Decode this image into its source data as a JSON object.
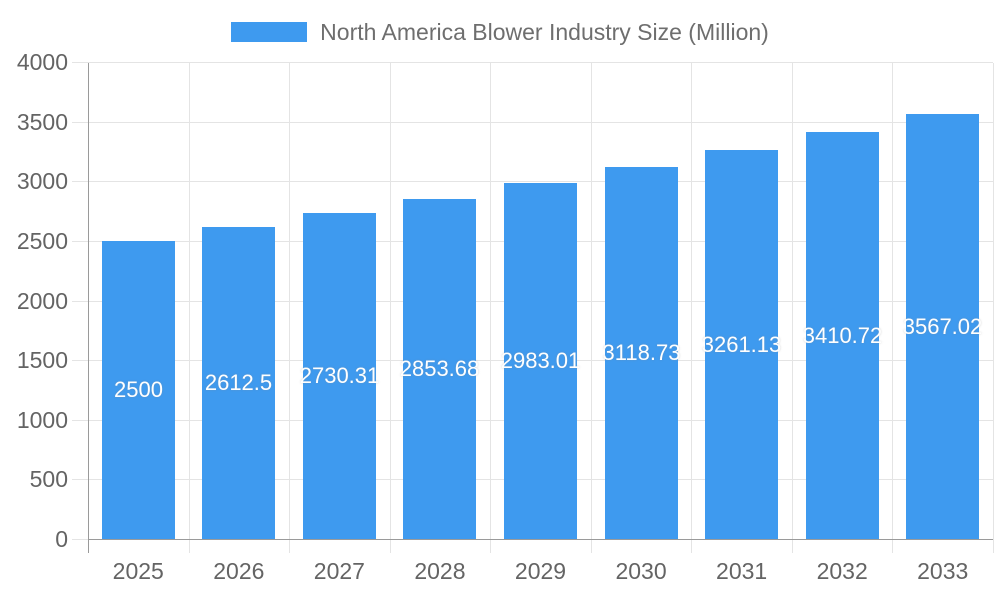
{
  "legend": {
    "label": "North America Blower Industry Size (Million)"
  },
  "colors": {
    "bar": "#3e9aef",
    "grid": "#e4e4e4",
    "axis": "#9a9a9a",
    "tick_text": "#646464",
    "legend_text": "#6e6e6e",
    "bar_value_text": "#ffffff",
    "background": "#ffffff"
  },
  "chart_data": {
    "type": "bar",
    "title": "North America Blower Industry Size (Million)",
    "categories": [
      "2025",
      "2026",
      "2027",
      "2028",
      "2029",
      "2030",
      "2031",
      "2032",
      "2033"
    ],
    "values": [
      2500,
      2612.5,
      2730.31,
      2853.68,
      2983.01,
      3118.73,
      3261.13,
      3410.72,
      3567.02
    ],
    "bar_labels": [
      "2500",
      "2612.5",
      "2730.31",
      "2853.68",
      "2983.01",
      "3118.73",
      "3261.13",
      "3410.72",
      "3567.02"
    ],
    "xlabel": "",
    "ylabel": "",
    "ylim": [
      0,
      4000
    ],
    "y_ticks": [
      0,
      500,
      1000,
      1500,
      2000,
      2500,
      3000,
      3500,
      4000
    ],
    "grid": true,
    "legend_position": "top",
    "bar_color": "#3e9aef",
    "value_label_position": "middle-inside"
  }
}
